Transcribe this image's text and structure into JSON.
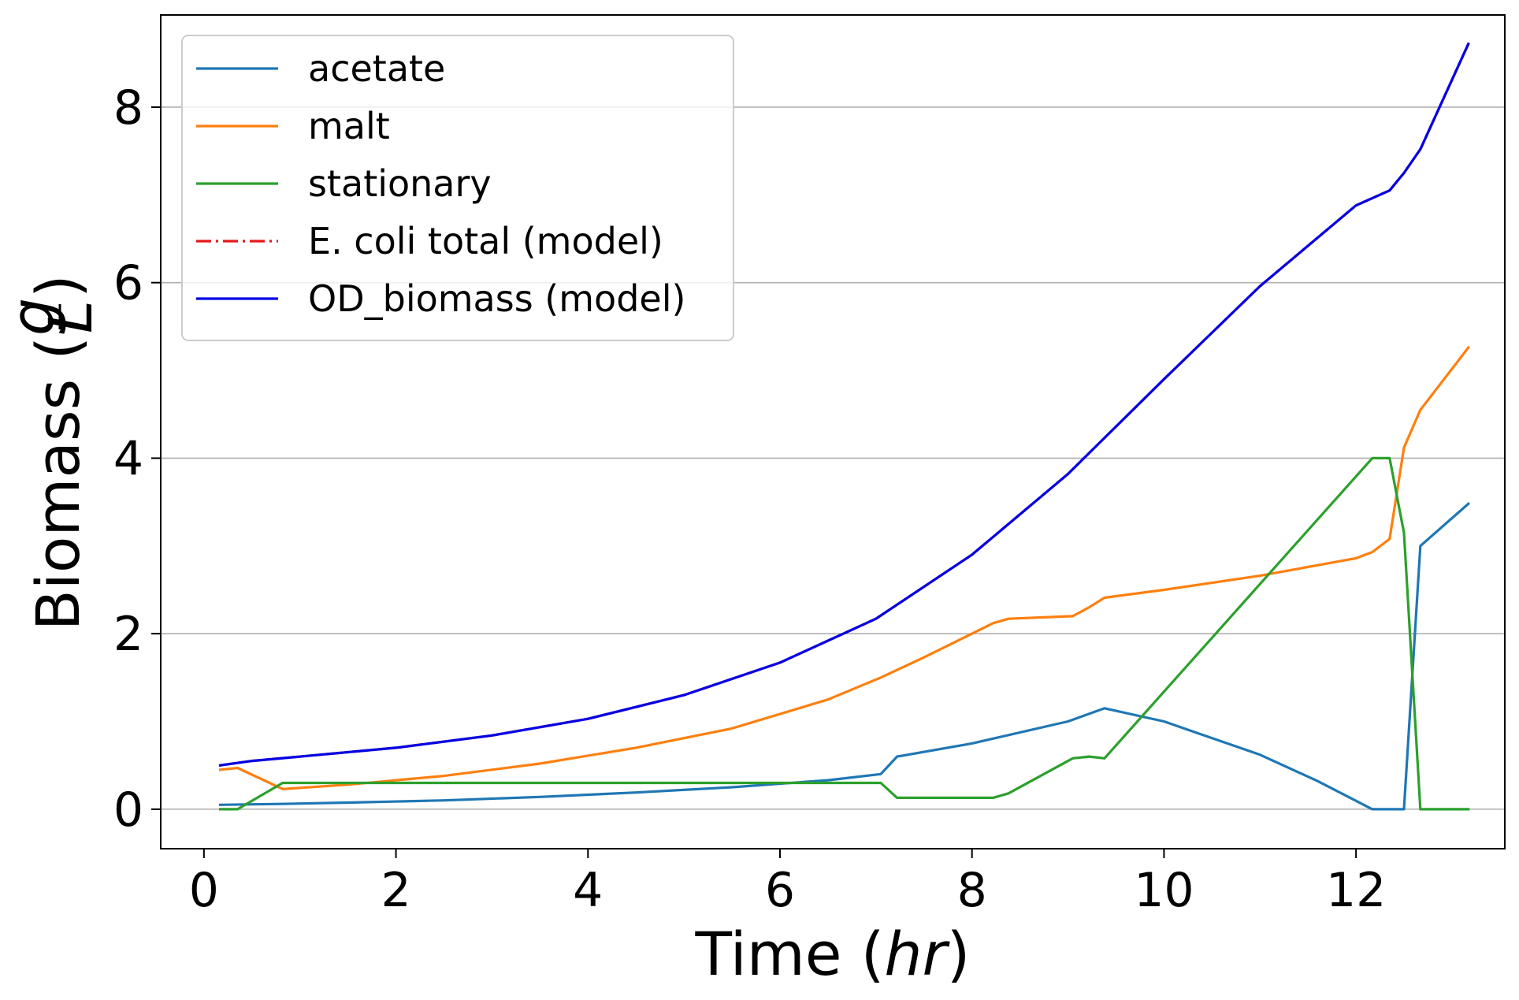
{
  "chart_data": {
    "type": "line",
    "xlabel": "Time (hr)",
    "xlabel_main": "Time (",
    "xlabel_unit": "hr",
    "xlabel_close": ")",
    "ylabel": "Biomass (g/L)",
    "ylabel_main": "Biomass (",
    "ylabel_num": "g",
    "ylabel_den": "L",
    "ylabel_close": ")",
    "xlim": [
      -0.45,
      13.55
    ],
    "ylim": [
      -0.45,
      9.05
    ],
    "xticks": [
      0,
      2,
      4,
      6,
      8,
      10,
      12
    ],
    "yticks": [
      0,
      2,
      4,
      6,
      8
    ],
    "grid": "horizontal",
    "legend_position": "top-left",
    "series": [
      {
        "name": "acetate",
        "color": "#1f77b4",
        "x": [
          0.17,
          0.8,
          1.5,
          2.5,
          3.5,
          4.5,
          5.5,
          6.5,
          7.05,
          7.22,
          8.0,
          9.0,
          9.38,
          10.0,
          11.0,
          11.6,
          12.17,
          12.35,
          12.5,
          12.67,
          13.17
        ],
        "y": [
          0.05,
          0.06,
          0.075,
          0.1,
          0.14,
          0.19,
          0.25,
          0.33,
          0.4,
          0.6,
          0.75,
          1.0,
          1.15,
          1.0,
          0.62,
          0.32,
          0.0,
          0.0,
          0.0,
          3.0,
          3.48
        ]
      },
      {
        "name": "malt",
        "color": "#ff7f0e",
        "x": [
          0.17,
          0.35,
          0.82,
          1.5,
          2.5,
          3.5,
          4.5,
          5.5,
          6.5,
          7.05,
          7.5,
          8.0,
          8.22,
          8.38,
          9.05,
          9.22,
          9.38,
          10.0,
          11.0,
          12.0,
          12.17,
          12.35,
          12.5,
          12.67,
          13.17
        ],
        "y": [
          0.45,
          0.47,
          0.23,
          0.28,
          0.38,
          0.52,
          0.7,
          0.92,
          1.25,
          1.5,
          1.73,
          2.0,
          2.12,
          2.17,
          2.2,
          2.3,
          2.41,
          2.5,
          2.66,
          2.86,
          2.93,
          3.08,
          4.12,
          4.55,
          5.26
        ]
      },
      {
        "name": "stationary",
        "color": "#2ca02c",
        "x": [
          0.17,
          0.35,
          0.82,
          2.0,
          4.0,
          6.0,
          7.05,
          7.22,
          8.22,
          8.38,
          9.05,
          9.22,
          9.38,
          12.17,
          12.35,
          12.5,
          12.67,
          13.17
        ],
        "y": [
          0.0,
          0.0,
          0.3,
          0.3,
          0.3,
          0.3,
          0.3,
          0.13,
          0.13,
          0.18,
          0.58,
          0.6,
          0.58,
          4.0,
          4.0,
          3.15,
          0.0,
          0.0
        ]
      },
      {
        "name": "E. coli total (model)",
        "color": "#e41a1c",
        "dash": "dashdot",
        "x": [
          0.17,
          0.5,
          1.0,
          2.0,
          3.0,
          4.0,
          5.0,
          6.0,
          7.0,
          8.0,
          9.0,
          10.0,
          11.0,
          12.0,
          12.35,
          12.5,
          12.67,
          13.17
        ],
        "y": [
          0.5,
          0.55,
          0.6,
          0.7,
          0.84,
          1.03,
          1.3,
          1.67,
          2.17,
          2.9,
          3.82,
          4.9,
          5.96,
          6.88,
          7.05,
          7.25,
          7.52,
          8.72
        ]
      },
      {
        "name": "OD_biomass (model)",
        "color": "#0000e6",
        "x": [
          0.17,
          0.5,
          1.0,
          2.0,
          3.0,
          4.0,
          5.0,
          6.0,
          7.0,
          8.0,
          9.0,
          10.0,
          11.0,
          12.0,
          12.35,
          12.5,
          12.67,
          13.17
        ],
        "y": [
          0.5,
          0.55,
          0.6,
          0.7,
          0.84,
          1.03,
          1.3,
          1.67,
          2.17,
          2.9,
          3.82,
          4.9,
          5.96,
          6.88,
          7.05,
          7.25,
          7.52,
          8.72
        ]
      }
    ]
  }
}
